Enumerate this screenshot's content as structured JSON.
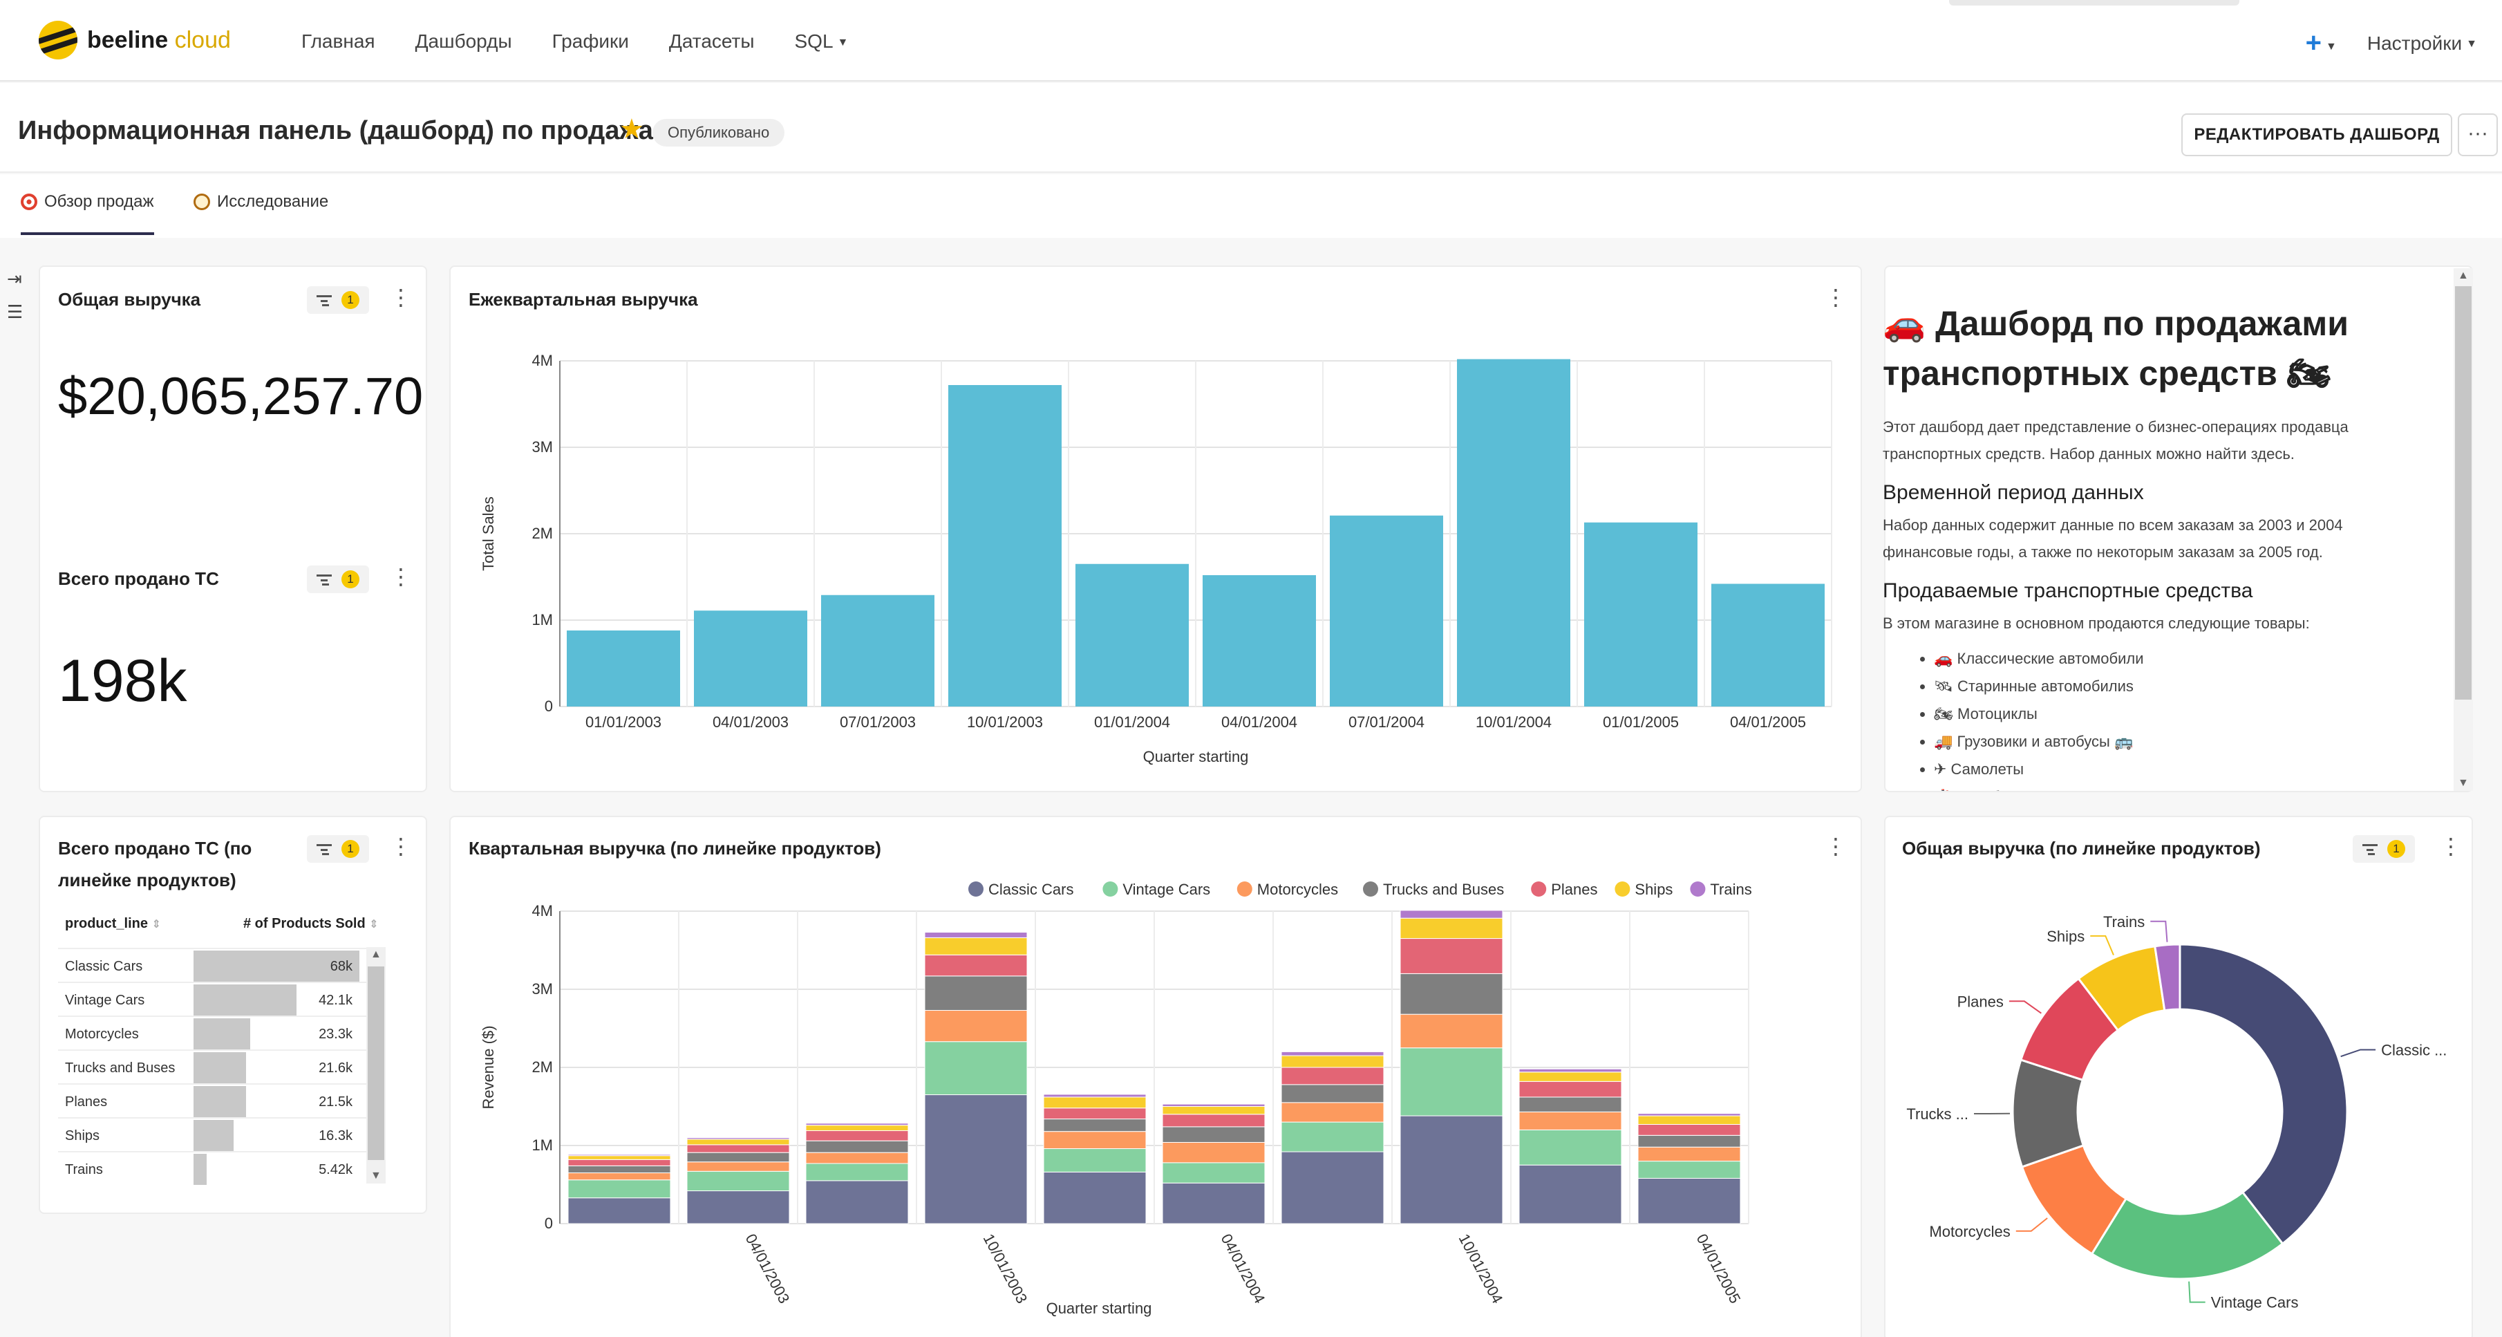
{
  "nav": {
    "brand": "beeline",
    "brand_suffix": "cloud",
    "links": [
      "Главная",
      "Дашборды",
      "Графики",
      "Датасеты",
      "SQL"
    ],
    "plus": "+",
    "settings": "Настройки"
  },
  "header": {
    "title": "Информационная панель (дашборд) по продажам",
    "status": "Опубликовано",
    "edit_button": "РЕДАКТИРОВАТЬ ДАШБОРД",
    "more": "···"
  },
  "tabs": [
    {
      "label": "Обзор продаж",
      "active": true
    },
    {
      "label": "Исследование",
      "active": false
    }
  ],
  "cards": {
    "total_revenue": {
      "title": "Общая выручка",
      "filters": "1",
      "value": "$20,065,257.70"
    },
    "total_sold": {
      "title": "Всего продано ТС",
      "filters": "1",
      "value": "198k"
    },
    "sold_by_line": {
      "title_line1": "Всего продано ТС (по",
      "title_line2": "линейке продуктов)",
      "filters": "1",
      "col1": "product_line",
      "col2": "# of Products Sold",
      "rows": [
        {
          "label": "Classic Cars",
          "value": "68k",
          "num": 68000
        },
        {
          "label": "Vintage Cars",
          "value": "42.1k",
          "num": 42100
        },
        {
          "label": "Motorcycles",
          "value": "23.3k",
          "num": 23300
        },
        {
          "label": "Trucks and Buses",
          "value": "21.6k",
          "num": 21600
        },
        {
          "label": "Planes",
          "value": "21.5k",
          "num": 21500
        },
        {
          "label": "Ships",
          "value": "16.3k",
          "num": 16300
        },
        {
          "label": "Trains",
          "value": "5.42k",
          "num": 5420
        }
      ]
    },
    "quarterly": {
      "title": "Ежеквартальная выручка"
    },
    "quarterly_by_line": {
      "title": "Квартальная выручка (по линейке продуктов)"
    },
    "total_by_line": {
      "title": "Общая выручка (по линейке продуктов)",
      "filters": "1"
    }
  },
  "markdown": {
    "h1_line1": "🚗 Дашборд по продажами",
    "h1_line2": "транспортных средств 🏍",
    "p1_line1": "Этот дашборд дает представление о бизнес-операциях продавца",
    "p1_line2": "транспортных средств. Набор данных можно найти здесь.",
    "h2_period": "Временной период данных",
    "p2_line1": "Набор данных содержит данные по всем заказам за 2003 и 2004",
    "p2_line2": "финансовые годы, а также по некоторым заказам за 2005 год.",
    "h2_goods": "Продаваемые транспортные средства",
    "p3": "В этом магазине в основном продаются следующие товары:",
    "items": [
      "🚗 Классические автомобили",
      "🛰 Старинные автомобилиs",
      "🏍 Мотоциклы",
      "🚚 Грузовики и автобусы 🚌",
      "✈ Самолеты",
      "🚢 Корабли"
    ]
  },
  "chart_data": [
    {
      "type": "bar",
      "title": "Ежеквартальная выручка",
      "xlabel": "Quarter starting",
      "ylabel": "Total Sales",
      "ylim": [
        0,
        4000000
      ],
      "yticks": [
        "0",
        "1M",
        "2M",
        "3M",
        "4M"
      ],
      "grid": true,
      "color": "#5bbdd6",
      "categories": [
        "01/01/2003",
        "04/01/2003",
        "07/01/2003",
        "10/01/2003",
        "01/01/2004",
        "04/01/2004",
        "07/01/2004",
        "10/01/2004",
        "01/01/2005",
        "04/01/2005"
      ],
      "values": [
        880000,
        1110000,
        1290000,
        3720000,
        1650000,
        1520000,
        2210000,
        4020000,
        2130000,
        1420000
      ]
    },
    {
      "type": "bar",
      "stacked": true,
      "title": "Квартальная выручка (по линейке продуктов)",
      "xlabel": "Quarter starting",
      "ylabel": "Revenue ($)",
      "ylim": [
        0,
        4000000
      ],
      "yticks": [
        "0",
        "1M",
        "2M",
        "3M",
        "4M"
      ],
      "legend": "top",
      "categories": [
        "01/01/2003",
        "04/01/2003",
        "07/01/2003",
        "10/01/2003",
        "01/01/2004",
        "04/01/2004",
        "07/01/2004",
        "10/01/2004",
        "01/01/2005",
        "04/01/2005"
      ],
      "xtick_labels": [
        "",
        "04/01/2003",
        "",
        "10/01/2003",
        "",
        "04/01/2004",
        "",
        "10/01/2004",
        "",
        "04/01/2005"
      ],
      "series": [
        {
          "name": "Classic Cars",
          "color": "#6e7396",
          "values": [
            330000,
            420000,
            550000,
            1650000,
            660000,
            520000,
            920000,
            1380000,
            750000,
            580000
          ]
        },
        {
          "name": "Vintage Cars",
          "color": "#85d1a0",
          "values": [
            230000,
            250000,
            220000,
            680000,
            300000,
            260000,
            380000,
            870000,
            450000,
            220000
          ]
        },
        {
          "name": "Motorcycles",
          "color": "#fc9a5e",
          "values": [
            90000,
            120000,
            140000,
            400000,
            220000,
            260000,
            250000,
            430000,
            230000,
            180000
          ]
        },
        {
          "name": "Trucks and Buses",
          "color": "#7f7f7f",
          "values": [
            90000,
            120000,
            150000,
            440000,
            160000,
            200000,
            230000,
            520000,
            190000,
            150000
          ]
        },
        {
          "name": "Planes",
          "color": "#e36575",
          "values": [
            80000,
            100000,
            130000,
            270000,
            140000,
            160000,
            220000,
            450000,
            200000,
            140000
          ]
        },
        {
          "name": "Ships",
          "color": "#f8cd2c",
          "values": [
            50000,
            70000,
            70000,
            220000,
            140000,
            100000,
            150000,
            260000,
            120000,
            110000
          ]
        },
        {
          "name": "Trains",
          "color": "#b07acc",
          "values": [
            15000,
            20000,
            25000,
            70000,
            35000,
            30000,
            50000,
            100000,
            40000,
            30000
          ]
        }
      ]
    },
    {
      "type": "pie",
      "donut": true,
      "title": "Общая выручка (по линейке продуктов)",
      "labels": [
        "Classic ...",
        "Vintage Cars",
        "Motorcycles",
        "Trucks ...",
        "Planes",
        "Ships",
        "Trains"
      ],
      "colors": [
        "#464b75",
        "#5bc17f",
        "#fd7f45",
        "#666666",
        "#e0475a",
        "#f6c41a",
        "#a86dc4"
      ],
      "values": [
        7920000,
        3880000,
        2170000,
        2080000,
        1930000,
        1600000,
        480000
      ]
    }
  ]
}
